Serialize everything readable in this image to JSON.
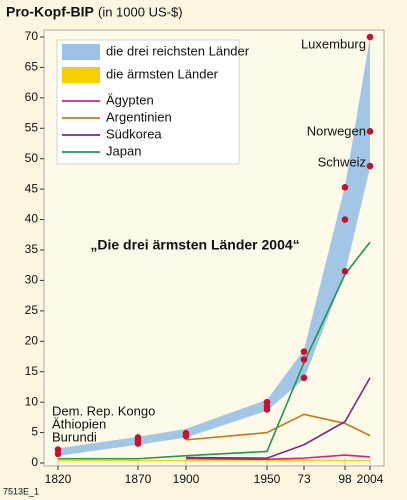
{
  "chart_data": {
    "type": "line",
    "title": "Pro-Kopf-BIP",
    "subtitle": "(in 1000 US-$)",
    "x": [
      1820,
      1870,
      1900,
      1950,
      1973,
      1998,
      2004
    ],
    "xticks": [
      1820,
      1870,
      1900,
      1950,
      {
        "value": 1973,
        "label": "73"
      },
      {
        "value": 1998,
        "label": "98"
      },
      2004
    ],
    "ylim": [
      0,
      70
    ],
    "yticks": [
      0,
      5,
      10,
      15,
      20,
      25,
      30,
      35,
      40,
      45,
      50,
      55,
      60,
      65,
      70
    ],
    "bands": [
      {
        "name": "die drei reichsten Länder",
        "color": "#9cc3e6",
        "lower": [
          1.2,
          3.0,
          4.2,
          8.6,
          13.8,
          31.2,
          48.5
        ],
        "upper": [
          2.4,
          4.3,
          5.6,
          10.4,
          18.6,
          45.5,
          70
        ]
      },
      {
        "name": "die ärmsten Länder",
        "color": "#f5d000",
        "lower": [
          0.3,
          0.3,
          0.3,
          0.3,
          0.3,
          0.3,
          0.3
        ],
        "upper": [
          0.5,
          0.5,
          0.5,
          0.6,
          0.6,
          0.5,
          0.5
        ]
      }
    ],
    "series": [
      {
        "name": "Ägypten",
        "color": "#e0207f",
        "values": [
          null,
          null,
          0.7,
          0.6,
          0.8,
          1.3,
          1.0
        ]
      },
      {
        "name": "Argentinien",
        "color": "#c87814",
        "values": [
          null,
          null,
          3.8,
          5.0,
          8.0,
          6.5,
          4.5
        ]
      },
      {
        "name": "Südkorea",
        "color": "#7a2a8c",
        "values": [
          null,
          null,
          0.9,
          0.8,
          3.0,
          6.8,
          14.0
        ]
      },
      {
        "name": "Japan",
        "color": "#1f9a4a",
        "values": [
          0.7,
          0.7,
          1.2,
          1.9,
          16.5,
          31.0,
          36.3
        ]
      }
    ],
    "markers": {
      "color": "#c8102e",
      "x": [
        1820,
        1820,
        1870,
        1870,
        1870,
        1900,
        1900,
        1950,
        1950,
        1950,
        1973,
        1973,
        1973,
        1998,
        1998,
        1998,
        2004,
        2004,
        2004
      ],
      "values": [
        1.5,
        2.2,
        3.2,
        3.7,
        4.2,
        4.4,
        4.9,
        8.8,
        9.3,
        10.0,
        14.0,
        17.0,
        18.3,
        31.5,
        40.0,
        45.3,
        48.8,
        54.5,
        70
      ]
    },
    "annotations": [
      "Luxemburg",
      "Norwegen",
      "Schweiz",
      "„Die drei ärmsten Länder 2004“",
      "Dem. Rep. Kongo",
      "Äthiopien",
      "Burundi"
    ],
    "footer": "7513E_1"
  }
}
